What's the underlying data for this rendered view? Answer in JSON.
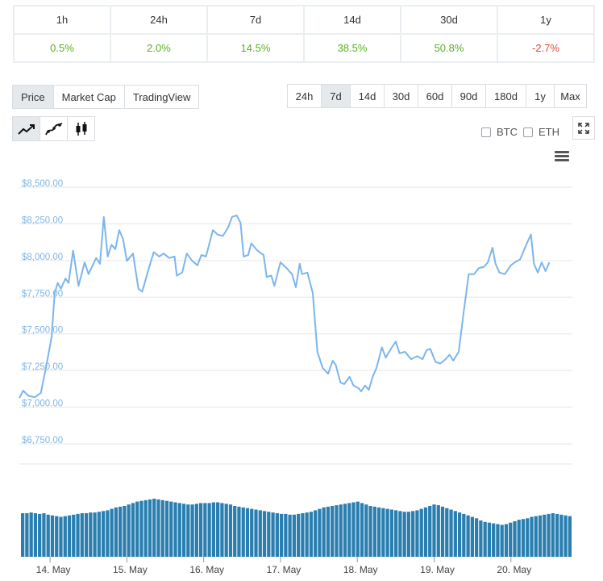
{
  "performance": {
    "periods": [
      "1h",
      "24h",
      "7d",
      "14d",
      "30d",
      "1y"
    ],
    "changes": [
      "0.5%",
      "2.0%",
      "14.5%",
      "38.5%",
      "50.8%",
      "-2.7%"
    ]
  },
  "controls": {
    "views": [
      "Price",
      "Market Cap",
      "TradingView"
    ],
    "active_view": "Price",
    "ranges": [
      "24h",
      "7d",
      "14d",
      "30d",
      "60d",
      "90d",
      "180d",
      "1y",
      "Max"
    ],
    "active_range": "7d",
    "chart_types": [
      "line-chart-icon",
      "smooth-line-chart-icon",
      "candlestick-icon"
    ],
    "compare": [
      "BTC",
      "ETH"
    ]
  },
  "colors": {
    "line": "#7cb5ec",
    "volume": "#2a7fb0",
    "positive": "#55b31f",
    "negative": "#e0473b"
  },
  "chart_data": {
    "type": "line",
    "y_ticks": [
      "$6,750.00",
      "$7,000.00",
      "$7,250.00",
      "$7,500.00",
      "$7,750.00",
      "$8,000.00",
      "$8,250.00",
      "$8,500.00"
    ],
    "y_tick_values": [
      6750,
      7000,
      7250,
      7500,
      7750,
      8000,
      8250,
      8500
    ],
    "ylim": [
      6750,
      8500
    ],
    "x_ticks": [
      "14. May",
      "15. May",
      "16. May",
      "17. May",
      "18. May",
      "19. May",
      "20. May"
    ],
    "x_tick_days": [
      14,
      15,
      16,
      17,
      18,
      19,
      20
    ],
    "xlim": [
      13.6,
      20.8
    ],
    "series": [
      {
        "values": [
          [
            13.6,
            7035
          ],
          [
            13.65,
            7085
          ],
          [
            13.72,
            7050
          ],
          [
            13.8,
            7040
          ],
          [
            13.88,
            7070
          ],
          [
            13.95,
            7250
          ],
          [
            14.02,
            7450
          ],
          [
            14.06,
            7750
          ],
          [
            14.1,
            7820
          ],
          [
            14.14,
            7780
          ],
          [
            14.2,
            7850
          ],
          [
            14.24,
            7820
          ],
          [
            14.3,
            8040
          ],
          [
            14.37,
            7800
          ],
          [
            14.45,
            7960
          ],
          [
            14.5,
            7880
          ],
          [
            14.6,
            7990
          ],
          [
            14.65,
            7950
          ],
          [
            14.7,
            8270
          ],
          [
            14.75,
            8000
          ],
          [
            14.8,
            8080
          ],
          [
            14.85,
            8050
          ],
          [
            14.9,
            8180
          ],
          [
            14.95,
            8120
          ],
          [
            15.0,
            7970
          ],
          [
            15.08,
            8020
          ],
          [
            15.15,
            7780
          ],
          [
            15.2,
            7760
          ],
          [
            15.28,
            7910
          ],
          [
            15.35,
            8030
          ],
          [
            15.42,
            8000
          ],
          [
            15.48,
            8020
          ],
          [
            15.55,
            7990
          ],
          [
            15.62,
            8000
          ],
          [
            15.65,
            7870
          ],
          [
            15.72,
            7890
          ],
          [
            15.78,
            8020
          ],
          [
            15.85,
            7970
          ],
          [
            15.92,
            7940
          ],
          [
            15.97,
            8010
          ],
          [
            16.03,
            8000
          ],
          [
            16.12,
            8180
          ],
          [
            16.18,
            8150
          ],
          [
            16.25,
            8140
          ],
          [
            16.32,
            8200
          ],
          [
            16.37,
            8270
          ],
          [
            16.43,
            8280
          ],
          [
            16.48,
            8230
          ],
          [
            16.52,
            8000
          ],
          [
            16.58,
            8010
          ],
          [
            16.62,
            8090
          ],
          [
            16.7,
            8040
          ],
          [
            16.78,
            8010
          ],
          [
            16.82,
            7860
          ],
          [
            16.88,
            7870
          ],
          [
            16.92,
            7800
          ],
          [
            17.0,
            7960
          ],
          [
            17.08,
            7920
          ],
          [
            17.15,
            7880
          ],
          [
            17.2,
            7790
          ],
          [
            17.25,
            7950
          ],
          [
            17.28,
            7880
          ],
          [
            17.35,
            7890
          ],
          [
            17.42,
            7750
          ],
          [
            17.48,
            7350
          ],
          [
            17.55,
            7240
          ],
          [
            17.62,
            7200
          ],
          [
            17.68,
            7290
          ],
          [
            17.72,
            7260
          ],
          [
            17.78,
            7140
          ],
          [
            17.83,
            7130
          ],
          [
            17.9,
            7180
          ],
          [
            17.95,
            7120
          ],
          [
            18.02,
            7100
          ],
          [
            18.05,
            7080
          ],
          [
            18.1,
            7120
          ],
          [
            18.15,
            7090
          ],
          [
            18.2,
            7180
          ],
          [
            18.25,
            7240
          ],
          [
            18.32,
            7380
          ],
          [
            18.37,
            7310
          ],
          [
            18.45,
            7380
          ],
          [
            18.5,
            7420
          ],
          [
            18.55,
            7340
          ],
          [
            18.62,
            7350
          ],
          [
            18.7,
            7300
          ],
          [
            18.78,
            7320
          ],
          [
            18.85,
            7300
          ],
          [
            18.9,
            7360
          ],
          [
            18.95,
            7370
          ],
          [
            19.02,
            7280
          ],
          [
            19.08,
            7270
          ],
          [
            19.15,
            7300
          ],
          [
            19.2,
            7330
          ],
          [
            19.25,
            7290
          ],
          [
            19.32,
            7350
          ],
          [
            19.38,
            7600
          ],
          [
            19.45,
            7880
          ],
          [
            19.52,
            7880
          ],
          [
            19.58,
            7920
          ],
          [
            19.65,
            7930
          ],
          [
            19.7,
            7960
          ],
          [
            19.76,
            8060
          ],
          [
            19.8,
            7950
          ],
          [
            19.85,
            7890
          ],
          [
            19.92,
            7880
          ],
          [
            20.0,
            7940
          ],
          [
            20.05,
            7960
          ],
          [
            20.12,
            7980
          ],
          [
            20.2,
            8080
          ],
          [
            20.26,
            8150
          ],
          [
            20.3,
            7950
          ],
          [
            20.35,
            7890
          ],
          [
            20.4,
            7960
          ],
          [
            20.45,
            7900
          ],
          [
            20.5,
            7960
          ]
        ]
      }
    ],
    "volume_values": [
      0.6,
      0.6,
      0.61,
      0.6,
      0.59,
      0.6,
      0.58,
      0.57,
      0.56,
      0.55,
      0.56,
      0.57,
      0.58,
      0.59,
      0.6,
      0.6,
      0.61,
      0.61,
      0.62,
      0.63,
      0.64,
      0.66,
      0.68,
      0.69,
      0.7,
      0.72,
      0.74,
      0.76,
      0.77,
      0.78,
      0.79,
      0.8,
      0.79,
      0.78,
      0.77,
      0.76,
      0.75,
      0.74,
      0.73,
      0.72,
      0.72,
      0.73,
      0.74,
      0.74,
      0.74,
      0.75,
      0.75,
      0.74,
      0.73,
      0.72,
      0.7,
      0.69,
      0.68,
      0.67,
      0.66,
      0.65,
      0.64,
      0.63,
      0.62,
      0.61,
      0.6,
      0.59,
      0.59,
      0.58,
      0.58,
      0.59,
      0.6,
      0.61,
      0.62,
      0.64,
      0.66,
      0.68,
      0.69,
      0.7,
      0.71,
      0.72,
      0.73,
      0.74,
      0.75,
      0.76,
      0.74,
      0.72,
      0.7,
      0.69,
      0.68,
      0.67,
      0.66,
      0.65,
      0.64,
      0.63,
      0.62,
      0.62,
      0.63,
      0.64,
      0.66,
      0.68,
      0.7,
      0.72,
      0.71,
      0.69,
      0.67,
      0.65,
      0.63,
      0.61,
      0.59,
      0.57,
      0.55,
      0.53,
      0.5,
      0.48,
      0.47,
      0.46,
      0.45,
      0.44,
      0.45,
      0.47,
      0.49,
      0.51,
      0.52,
      0.53,
      0.55,
      0.56,
      0.57,
      0.58,
      0.59,
      0.6,
      0.59,
      0.58,
      0.57,
      0.56
    ]
  }
}
